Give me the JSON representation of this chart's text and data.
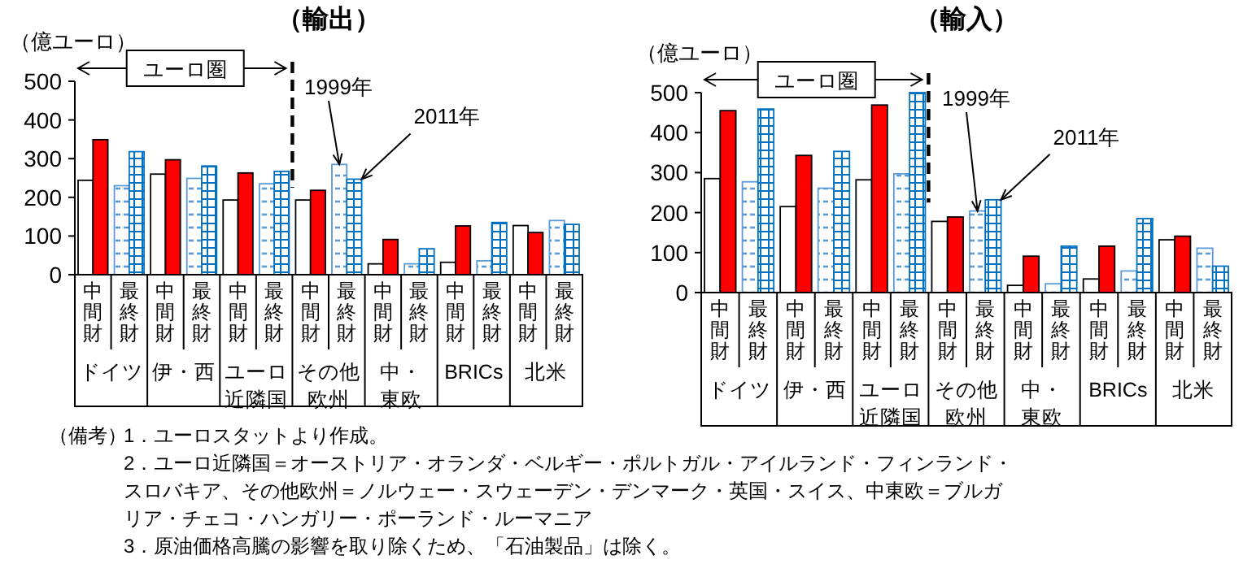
{
  "chart_data": [
    {
      "type": "bar",
      "title": "（輸出）",
      "ylabel": "（億ユーロ）",
      "categories": [
        "ドイツ",
        "伊・西",
        "ユーロ近隣国",
        "その他欧州",
        "中・東欧",
        "BRICs",
        "北米"
      ],
      "series": [
        {
          "name": "中間財",
          "color": "#ffffff",
          "values": [
            244,
            260,
            193,
            193,
            28,
            32,
            127
          ]
        },
        {
          "color": "#ff0000",
          "values": [
            349,
            297,
            263,
            218,
            91,
            126,
            109
          ]
        },
        {
          "name": "最終財",
          "color": "#5b9bd5",
          "values": [
            230,
            249,
            235,
            285,
            28,
            36,
            140
          ]
        },
        {
          "color": "#0070c0",
          "values": [
            318,
            281,
            267,
            247,
            67,
            135,
            130
          ]
        }
      ],
      "ylim": [
        0,
        500
      ],
      "yticks": [
        0,
        100,
        200,
        300,
        400,
        500
      ],
      "annotations": [
        "ユーロ圏",
        {
          "text": "1999年",
          "y": 285
        },
        "2011年",
        "（備考）",
        "1．ユーロスタットより作成。",
        "2．ユーロ近隣国＝オーストリア・オランダ・ベルギー・ポルトガル・アイルランド・フィンランド・スロバキア、その他欧州＝ノルウェー・スウェーデン・デンマーク・英国・スイス、中東欧＝ブルガリア・チェコ・ハンガリー・ポーランド・ルーマニア",
        "3．原油価格高騰の影響を取り除くため、「石油製品」は除く。"
      ]
    },
    {
      "type": "bar",
      "title": "（輸入）",
      "ylabel": "（億ユーロ）",
      "categories": [
        "ドイツ",
        "伊・西",
        "ユーロ近隣国",
        "その他欧州",
        "中・東欧",
        "BRICs",
        "北米"
      ],
      "series": [
        {
          "name": "中間財",
          "color": "#ffffff",
          "values": [
            285,
            215,
            282,
            178,
            18,
            34,
            132
          ]
        },
        {
          "color": "#ff0000",
          "values": [
            455,
            343,
            469,
            189,
            91,
            116,
            141
          ]
        },
        {
          "name": "最終財",
          "color": "#5b9bd5",
          "values": [
            277,
            261,
            297,
            204,
            22,
            54,
            111
          ]
        },
        {
          "color": "#0070c0",
          "values": [
            459,
            353,
            500,
            232,
            116,
            185,
            66
          ]
        }
      ],
      "ylim": [
        0,
        500
      ],
      "yticks": [
        0,
        100,
        200,
        300,
        400,
        500
      ],
      "annotations": [
        "ユーロ圏",
        {
          "text": "1999年",
          "y": 204
        },
        "2011年"
      ]
    }
  ]
}
